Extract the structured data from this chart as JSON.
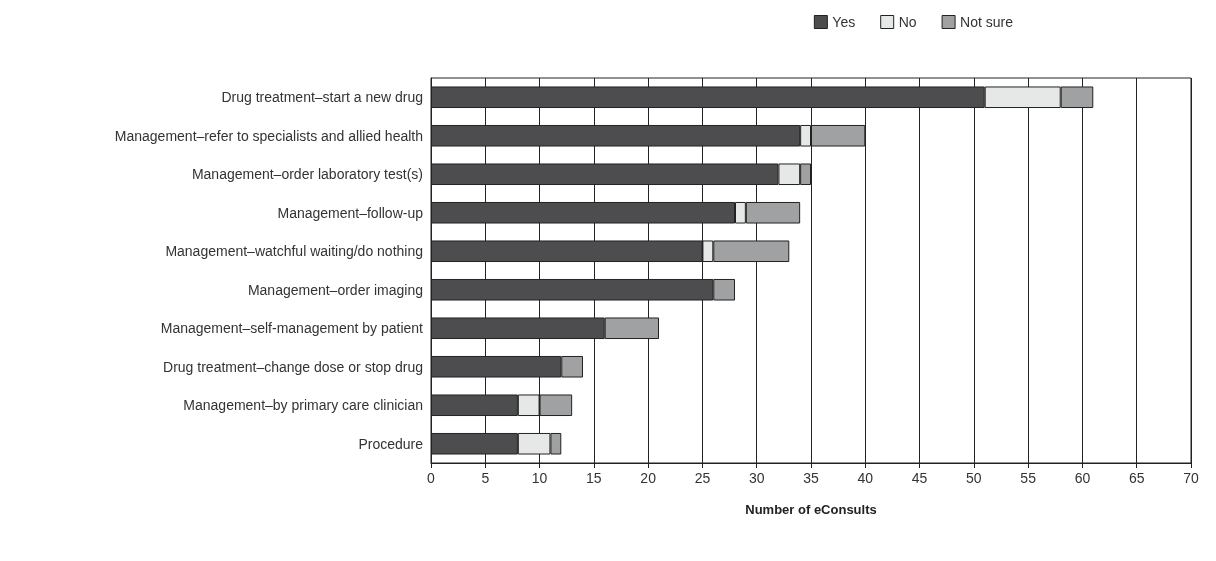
{
  "chart_data": {
    "type": "bar",
    "orientation": "horizontal",
    "stacked": true,
    "xlabel": "Number of eConsults",
    "categories": [
      "Drug treatment–start a new drug",
      "Management–refer to specialists and allied health",
      "Management–order laboratory test(s)",
      "Management–follow-up",
      "Management–watchful waiting/do nothing",
      "Management–order imaging",
      "Management–self-management by patient",
      "Drug treatment–change dose or stop drug",
      "Management–by primary care clinician",
      "Procedure"
    ],
    "series": [
      {
        "name": "Yes",
        "color": "#4d4d4f",
        "values": [
          51,
          34,
          32,
          28,
          25,
          26,
          16,
          12,
          8,
          8
        ]
      },
      {
        "name": "No",
        "color": "#e6e7e7",
        "values": [
          7,
          1,
          2,
          1,
          1,
          0,
          0,
          0,
          2,
          3
        ]
      },
      {
        "name": "Not sure",
        "color": "#a0a1a3",
        "values": [
          3,
          5,
          1,
          5,
          7,
          2,
          5,
          2,
          3,
          1
        ]
      }
    ],
    "xlim": [
      0,
      70
    ],
    "xticks": [
      0,
      5,
      10,
      15,
      20,
      25,
      30,
      35,
      40,
      45,
      50,
      55,
      60,
      65,
      70
    ],
    "grid": "x",
    "legend": "top right"
  }
}
